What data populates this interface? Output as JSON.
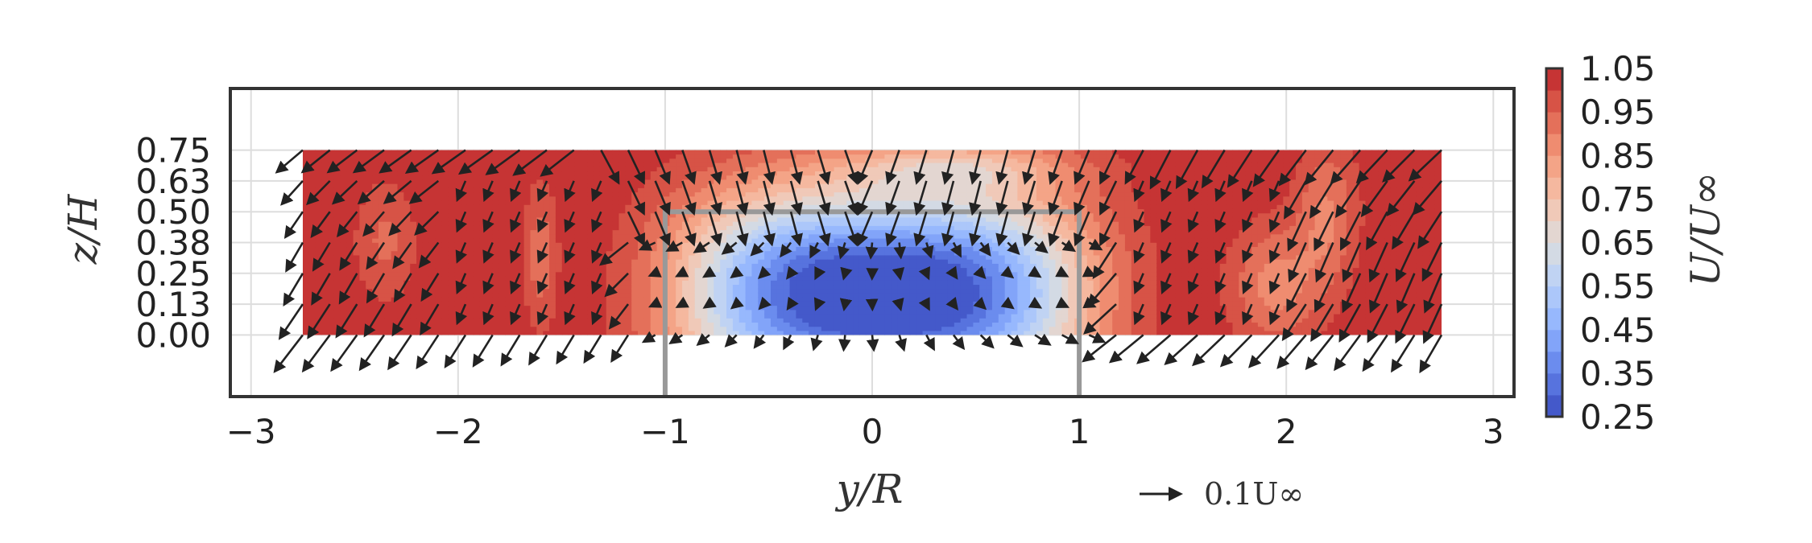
{
  "chart_data": {
    "type": "contour-quiver",
    "xlabel": "y/R",
    "ylabel": "z/H",
    "xlim": [
      -3.1,
      3.1
    ],
    "ylim": [
      -0.25,
      1.0
    ],
    "xticks": [
      -3,
      -2,
      -1,
      0,
      1,
      2,
      3
    ],
    "xtick_labels": [
      "−3",
      "−2",
      "−1",
      "0",
      "1",
      "2",
      "3"
    ],
    "yticks": [
      0.0,
      0.125,
      0.25,
      0.375,
      0.5,
      0.625,
      0.75
    ],
    "ytick_labels": [
      "0.00",
      "0.13",
      "0.25",
      "0.38",
      "0.50",
      "0.63",
      "0.75"
    ],
    "grid": true,
    "contour": {
      "field": "U/U∞",
      "y_range": [
        -2.75,
        2.75
      ],
      "z_range": [
        0.0,
        0.75
      ],
      "levels": [
        0.25,
        0.3,
        0.35,
        0.4,
        0.45,
        0.5,
        0.55,
        0.6,
        0.65,
        0.7,
        0.75,
        0.8,
        0.85,
        0.9,
        0.95,
        1.0,
        1.05
      ],
      "wake_deficit": {
        "center_y": 0.05,
        "center_z": 0.15,
        "min_value": 0.25
      },
      "colormap": "coolwarm"
    },
    "colorbar": {
      "label": "U/U∞",
      "ticks": [
        1.05,
        0.95,
        0.85,
        0.75,
        0.65,
        0.55,
        0.45,
        0.35,
        0.25
      ],
      "tick_labels": [
        "1.05",
        "0.95",
        "0.85",
        "0.75",
        "0.65",
        "0.55",
        "0.45",
        "0.35",
        "0.25"
      ]
    },
    "turbine_outline": {
      "y": [
        -1,
        1
      ],
      "z": [
        -0.25,
        0.5
      ],
      "color": "#999999"
    },
    "vectors": {
      "y_range": [
        -2.75,
        2.75
      ],
      "z_levels": [
        0.0,
        0.125,
        0.25,
        0.375,
        0.5,
        0.625,
        0.75
      ],
      "scale_key": {
        "label": "0.1U∞",
        "magnitude": 0.1
      }
    }
  }
}
